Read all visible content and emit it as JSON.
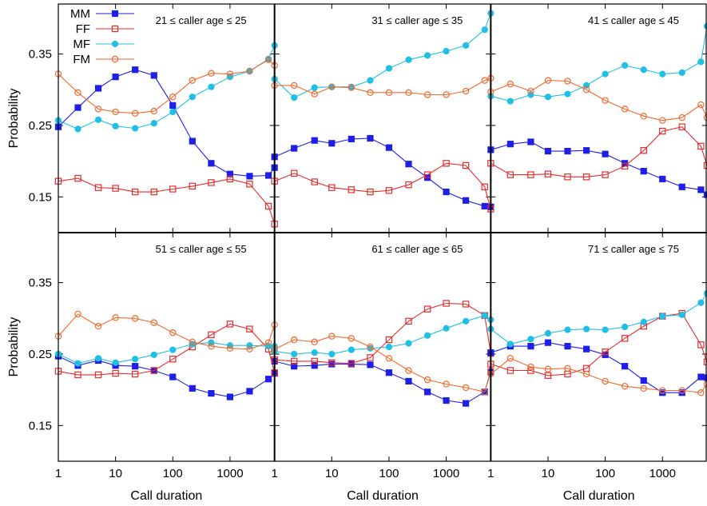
{
  "chart_data": {
    "type": "line",
    "xlabel": "Call duration",
    "ylabel": "Probability",
    "xscale": "log",
    "xlim": [
      1,
      6000
    ],
    "ylim": [
      0.1,
      0.42
    ],
    "x_ticks": [
      1,
      10,
      100,
      1000
    ],
    "x_tick_labels": [
      "1",
      "10",
      "100",
      "1000"
    ],
    "y_ticks": [
      0.15,
      0.25,
      0.35
    ],
    "y_tick_labels": [
      "0.15",
      "0.25",
      "0.35"
    ],
    "legend": {
      "placement": "top-left",
      "entries": [
        {
          "name": "MM",
          "color": "#1f1fe6",
          "marker": "filled-square"
        },
        {
          "name": "FF",
          "color": "#e62b2b",
          "marker": "open-square"
        },
        {
          "name": "MF",
          "color": "#1fbfe6",
          "marker": "filled-circle"
        },
        {
          "name": "FM",
          "color": "#f26a2e",
          "marker": "open-circle"
        }
      ]
    },
    "x": [
      1,
      2.2,
      5,
      10,
      22,
      47,
      100,
      220,
      470,
      1000,
      2200,
      4700,
      6000
    ],
    "panels": [
      {
        "title": "21 ≤ caller age ≤ 25",
        "series": [
          {
            "name": "MM",
            "values": [
              0.248,
              0.275,
              0.302,
              0.318,
              0.328,
              0.32,
              0.278,
              0.228,
              0.197,
              0.182,
              0.179,
              0.18,
              0.191
            ]
          },
          {
            "name": "FF",
            "values": [
              0.172,
              0.176,
              0.163,
              0.162,
              0.157,
              0.157,
              0.161,
              0.165,
              0.17,
              0.175,
              0.168,
              0.137,
              0.112
            ]
          },
          {
            "name": "MF",
            "values": [
              0.257,
              0.245,
              0.258,
              0.249,
              0.246,
              0.253,
              0.269,
              0.29,
              0.304,
              0.318,
              0.326,
              0.343,
              0.362
            ]
          },
          {
            "name": "FM",
            "values": [
              0.322,
              0.296,
              0.273,
              0.269,
              0.267,
              0.27,
              0.29,
              0.313,
              0.323,
              0.322,
              0.326,
              0.342,
              0.334
            ]
          }
        ]
      },
      {
        "title": "31 ≤ caller age ≤ 35",
        "series": [
          {
            "name": "MM",
            "values": [
              0.206,
              0.218,
              0.229,
              0.225,
              0.231,
              0.232,
              0.219,
              0.196,
              0.177,
              0.157,
              0.145,
              0.137,
              0.136
            ]
          },
          {
            "name": "FF",
            "values": [
              0.172,
              0.183,
              0.171,
              0.163,
              0.16,
              0.157,
              0.159,
              0.167,
              0.181,
              0.197,
              0.194,
              0.164,
              0.133
            ]
          },
          {
            "name": "MF",
            "values": [
              0.315,
              0.289,
              0.303,
              0.304,
              0.304,
              0.313,
              0.33,
              0.342,
              0.348,
              0.354,
              0.362,
              0.384,
              0.407
            ]
          },
          {
            "name": "FM",
            "values": [
              0.306,
              0.306,
              0.294,
              0.304,
              0.303,
              0.296,
              0.296,
              0.296,
              0.293,
              0.293,
              0.298,
              0.313,
              0.316
            ]
          }
        ]
      },
      {
        "title": "41 ≤ caller age ≤ 45",
        "series": [
          {
            "name": "MM",
            "values": [
              0.216,
              0.224,
              0.227,
              0.214,
              0.214,
              0.215,
              0.21,
              0.197,
              0.186,
              0.175,
              0.164,
              0.16,
              0.153
            ]
          },
          {
            "name": "FF",
            "values": [
              0.197,
              0.181,
              0.181,
              0.182,
              0.178,
              0.178,
              0.181,
              0.193,
              0.215,
              0.242,
              0.248,
              0.221,
              0.194
            ]
          },
          {
            "name": "MF",
            "values": [
              0.291,
              0.284,
              0.293,
              0.29,
              0.294,
              0.306,
              0.322,
              0.334,
              0.328,
              0.322,
              0.324,
              0.339,
              0.389
            ]
          },
          {
            "name": "FM",
            "values": [
              0.297,
              0.308,
              0.298,
              0.313,
              0.312,
              0.3,
              0.285,
              0.273,
              0.263,
              0.257,
              0.261,
              0.279,
              0.261
            ]
          }
        ]
      },
      {
        "title": "51 ≤ caller age ≤ 55",
        "series": [
          {
            "name": "MM",
            "values": [
              0.247,
              0.234,
              0.241,
              0.234,
              0.233,
              0.227,
              0.218,
              0.202,
              0.195,
              0.19,
              0.198,
              0.215,
              0.223
            ]
          },
          {
            "name": "FF",
            "values": [
              0.226,
              0.221,
              0.221,
              0.223,
              0.222,
              0.227,
              0.243,
              0.26,
              0.277,
              0.292,
              0.285,
              0.257,
              0.224
            ]
          },
          {
            "name": "MF",
            "values": [
              0.25,
              0.237,
              0.244,
              0.238,
              0.243,
              0.249,
              0.256,
              0.264,
              0.266,
              0.262,
              0.262,
              0.261,
              0.261
            ]
          },
          {
            "name": "FM",
            "values": [
              0.275,
              0.306,
              0.289,
              0.301,
              0.3,
              0.294,
              0.28,
              0.267,
              0.261,
              0.258,
              0.257,
              0.266,
              0.291
            ]
          }
        ]
      },
      {
        "title": "61 ≤ caller age ≤ 65",
        "series": [
          {
            "name": "MM",
            "values": [
              0.24,
              0.233,
              0.234,
              0.236,
              0.236,
              0.235,
              0.224,
              0.212,
              0.197,
              0.185,
              0.181,
              0.197,
              0.225
            ]
          },
          {
            "name": "FF",
            "values": [
              0.242,
              0.24,
              0.24,
              0.238,
              0.237,
              0.245,
              0.27,
              0.296,
              0.313,
              0.321,
              0.32,
              0.304,
              0.251
            ]
          },
          {
            "name": "MF",
            "values": [
              0.254,
              0.25,
              0.252,
              0.25,
              0.256,
              0.258,
              0.26,
              0.265,
              0.276,
              0.286,
              0.296,
              0.304,
              0.298
            ]
          },
          {
            "name": "FM",
            "values": [
              0.257,
              0.27,
              0.267,
              0.275,
              0.272,
              0.26,
              0.244,
              0.227,
              0.214,
              0.208,
              0.203,
              0.197,
              0.227
            ]
          }
        ]
      },
      {
        "title": "71 ≤ caller age ≤ 75",
        "series": [
          {
            "name": "MM",
            "values": [
              0.252,
              0.261,
              0.261,
              0.266,
              0.261,
              0.257,
              0.249,
              0.233,
              0.213,
              0.196,
              0.196,
              0.218,
              0.217
            ]
          },
          {
            "name": "FF",
            "values": [
              0.236,
              0.227,
              0.227,
              0.22,
              0.222,
              0.23,
              0.253,
              0.272,
              0.289,
              0.303,
              0.307,
              0.263,
              0.239
            ]
          },
          {
            "name": "MF",
            "values": [
              0.285,
              0.264,
              0.271,
              0.279,
              0.284,
              0.285,
              0.284,
              0.288,
              0.295,
              0.303,
              0.305,
              0.322,
              0.335
            ]
          },
          {
            "name": "FM",
            "values": [
              0.222,
              0.244,
              0.232,
              0.229,
              0.23,
              0.222,
              0.212,
              0.205,
              0.202,
              0.199,
              0.199,
              0.196,
              0.208
            ]
          }
        ]
      }
    ]
  }
}
